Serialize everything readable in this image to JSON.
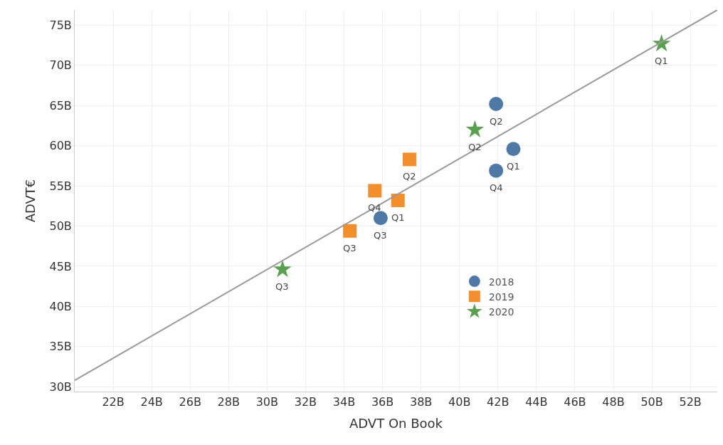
{
  "chart_data": {
    "type": "scatter",
    "xlabel": "ADVT On Book",
    "ylabel": "ADVT€",
    "xlim": [
      20,
      53.4
    ],
    "ylim": [
      29.4,
      76.9
    ],
    "xticks": [
      {
        "value": 22,
        "label": "22B"
      },
      {
        "value": 24,
        "label": "24B"
      },
      {
        "value": 26,
        "label": "26B"
      },
      {
        "value": 28,
        "label": "28B"
      },
      {
        "value": 30,
        "label": "30B"
      },
      {
        "value": 32,
        "label": "32B"
      },
      {
        "value": 34,
        "label": "34B"
      },
      {
        "value": 36,
        "label": "36B"
      },
      {
        "value": 38,
        "label": "38B"
      },
      {
        "value": 40,
        "label": "40B"
      },
      {
        "value": 42,
        "label": "42B"
      },
      {
        "value": 44,
        "label": "44B"
      },
      {
        "value": 46,
        "label": "46B"
      },
      {
        "value": 48,
        "label": "48B"
      },
      {
        "value": 50,
        "label": "50B"
      },
      {
        "value": 52,
        "label": "52B"
      }
    ],
    "yticks": [
      {
        "value": 30,
        "label": "30B"
      },
      {
        "value": 35,
        "label": "35B"
      },
      {
        "value": 40,
        "label": "40B"
      },
      {
        "value": 45,
        "label": "45B"
      },
      {
        "value": 50,
        "label": "50B"
      },
      {
        "value": 55,
        "label": "55B"
      },
      {
        "value": 60,
        "label": "60B"
      },
      {
        "value": 65,
        "label": "65B"
      },
      {
        "value": 70,
        "label": "70B"
      },
      {
        "value": 75,
        "label": "75B"
      }
    ],
    "grid": true,
    "legend": "bottom right",
    "series": [
      {
        "name": "2018",
        "color": "#4e79a7",
        "marker": "circle",
        "x": [
          42.8,
          41.9,
          35.9,
          41.9
        ],
        "values": [
          59.6,
          65.2,
          51.0,
          56.9
        ]
      },
      {
        "name": "2019",
        "color": "#f28e2b",
        "marker": "square",
        "x": [
          36.8,
          37.4,
          34.3,
          35.6
        ],
        "values": [
          53.2,
          58.3,
          49.4,
          54.4
        ]
      },
      {
        "name": "2020",
        "color": "#59a14f",
        "marker": "star",
        "x": [
          50.5,
          40.8,
          30.8
        ],
        "values": [
          72.7,
          62.0,
          44.6
        ]
      },
      {
        "type": "line",
        "color": "#999999",
        "x": [
          20.0,
          53.4
        ],
        "values": [
          30.8,
          76.9
        ]
      }
    ],
    "annotations": [
      {
        "text": "Q1",
        "x": 42.8,
        "y": 59.6
      },
      {
        "text": "Q2",
        "x": 41.9,
        "y": 65.2
      },
      {
        "text": "Q3",
        "x": 35.9,
        "y": 51.0
      },
      {
        "text": "Q4",
        "x": 41.9,
        "y": 56.9
      },
      {
        "text": "Q1",
        "x": 36.8,
        "y": 53.2
      },
      {
        "text": "Q2",
        "x": 37.4,
        "y": 58.3
      },
      {
        "text": "Q3",
        "x": 34.3,
        "y": 49.4
      },
      {
        "text": "Q4",
        "x": 35.6,
        "y": 54.4
      },
      {
        "text": "Q1",
        "x": 50.5,
        "y": 72.7
      },
      {
        "text": "Q2",
        "x": 40.8,
        "y": 62.0
      },
      {
        "text": "Q3",
        "x": 30.8,
        "y": 44.6
      }
    ]
  }
}
